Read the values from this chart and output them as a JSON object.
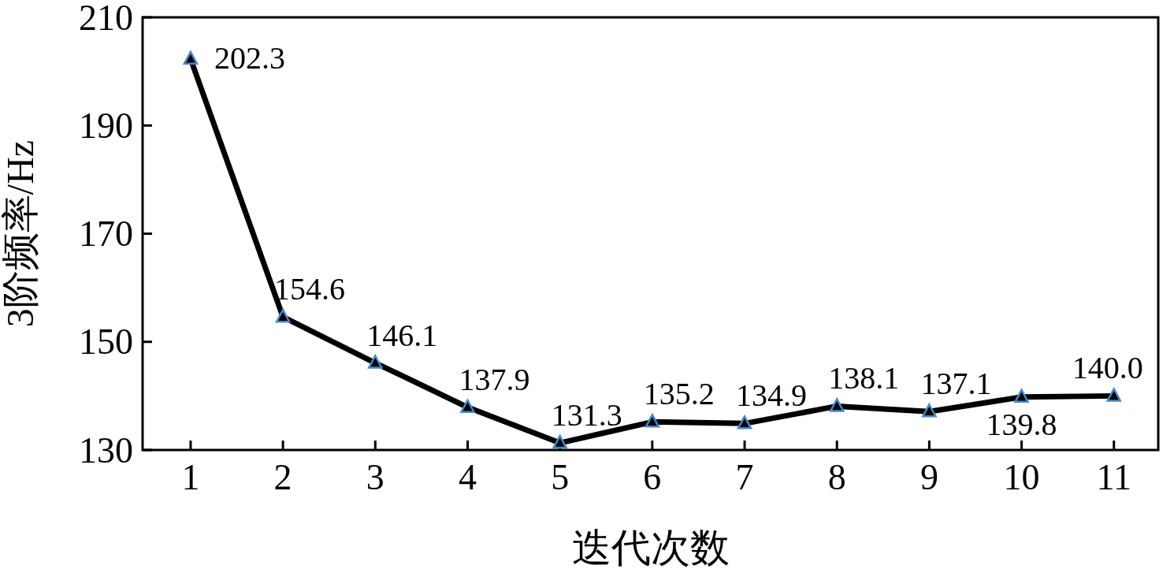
{
  "chart_data": {
    "type": "line",
    "xlabel": "迭代次数",
    "ylabel": "3阶频率/Hz",
    "categories": [
      "1",
      "2",
      "3",
      "4",
      "5",
      "6",
      "7",
      "8",
      "9",
      "10",
      "11"
    ],
    "series": [
      {
        "color": "#000000",
        "values": [
          202.3,
          154.6,
          146.1,
          137.9,
          131.3,
          135.2,
          134.9,
          138.1,
          137.1,
          139.8,
          140.0
        ]
      }
    ],
    "ylim": [
      130,
      210
    ],
    "yticks": [
      130,
      150,
      170,
      190,
      210
    ],
    "value_labels": [
      "202.3",
      "154.6",
      "146.1",
      "137.9",
      "131.3",
      "135.2",
      "134.9",
      "138.1",
      "137.1",
      "139.8",
      "140.0"
    ],
    "marker": "triangle",
    "grid": false
  }
}
